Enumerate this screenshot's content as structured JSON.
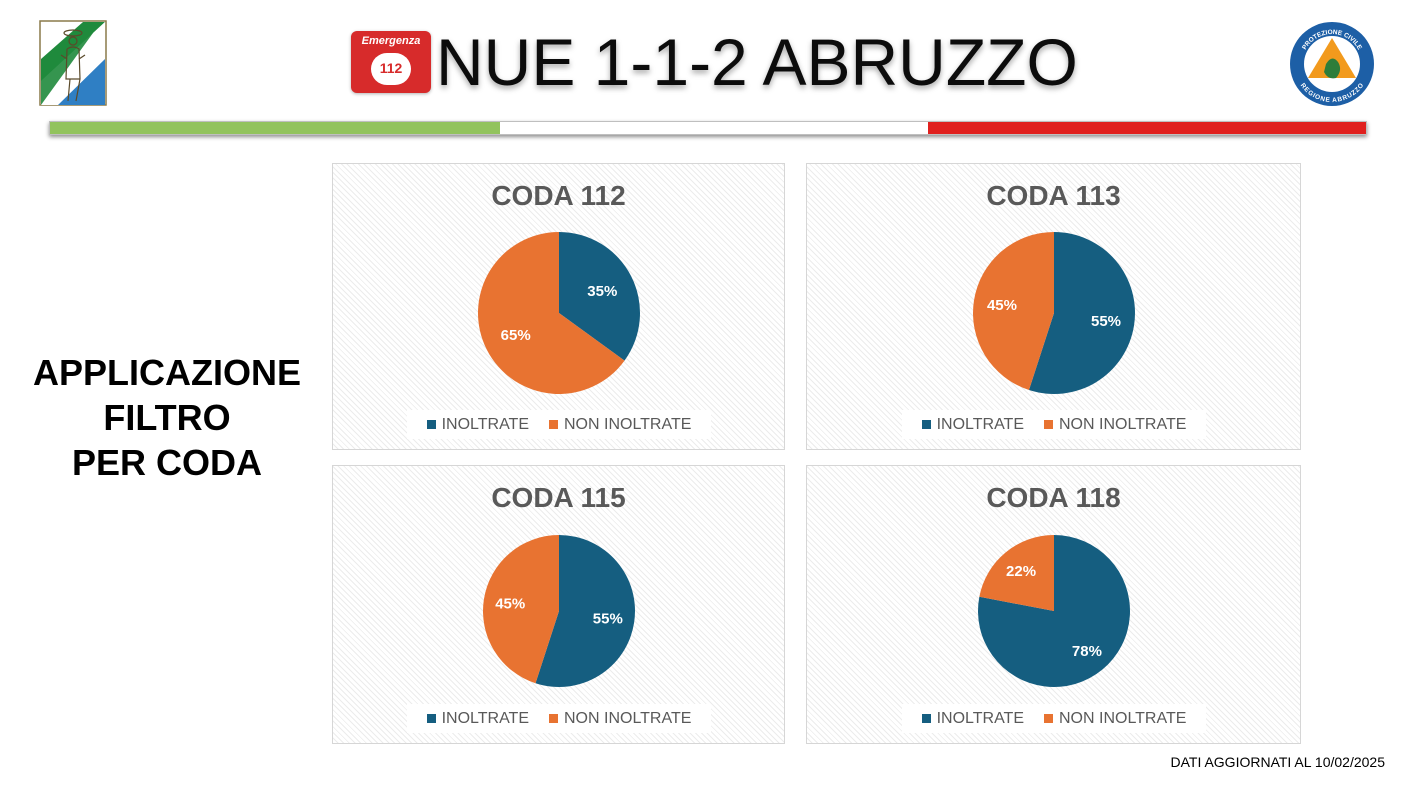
{
  "header": {
    "title": "NUE 1-1-2 ABRUZZO",
    "badge_label": "Emergenza",
    "badge_number": "112",
    "left_logo": "regione-abruzzo-coat-of-arms",
    "right_logo": "protezione-civile-regione-abruzzo-emblem",
    "right_logo_text": [
      "PROTEZIONE CIVILE",
      "REGIONE ABRUZZO"
    ]
  },
  "flag_colors": [
    "#92c35d",
    "#ffffff",
    "#e0201e"
  ],
  "side_caption": [
    "APPLICAZIONE",
    "FILTRO",
    "PER CODA"
  ],
  "footer": {
    "note": "DATI AGGIORNATI AL 10/02/2025"
  },
  "colors": {
    "inoltrate": "#155e80",
    "non_inoltrate": "#e87331"
  },
  "chart_data": [
    {
      "type": "pie",
      "title": "CODA 112",
      "categories": [
        "INOLTRATE",
        "NON INOLTRATE"
      ],
      "values": [
        35,
        65
      ],
      "labels": [
        "35%",
        "65%"
      ],
      "legend_position": "bottom",
      "start_angle": 0
    },
    {
      "type": "pie",
      "title": "CODA 113",
      "categories": [
        "INOLTRATE",
        "NON INOLTRATE"
      ],
      "values": [
        55,
        45
      ],
      "labels": [
        "55%",
        "45%"
      ],
      "legend_position": "bottom",
      "start_angle": 0
    },
    {
      "type": "pie",
      "title": "CODA 115",
      "categories": [
        "INOLTRATE",
        "NON INOLTRATE"
      ],
      "values": [
        55,
        45
      ],
      "labels": [
        "55%",
        "45%"
      ],
      "legend_position": "bottom",
      "start_angle": 0
    },
    {
      "type": "pie",
      "title": "CODA 118",
      "categories": [
        "INOLTRATE",
        "NON INOLTRATE"
      ],
      "values": [
        78,
        22
      ],
      "labels": [
        "78%",
        "22%"
      ],
      "legend_position": "bottom",
      "start_angle": 0
    }
  ]
}
